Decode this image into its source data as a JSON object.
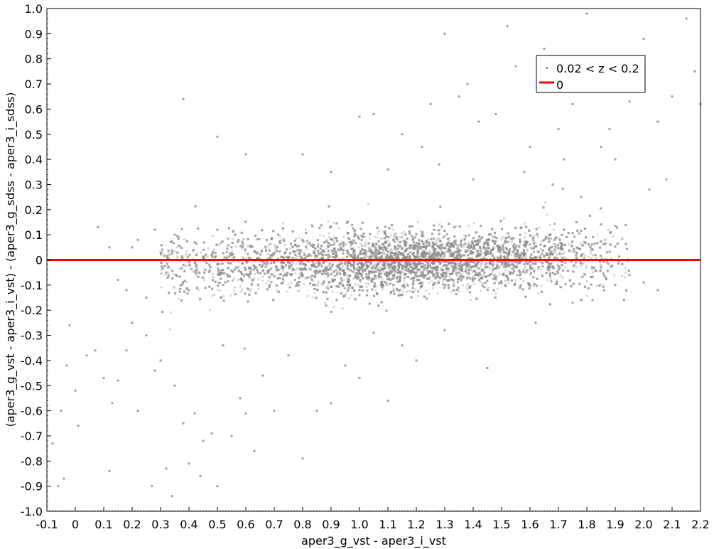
{
  "chart_data": {
    "type": "scatter",
    "xlabel": "aper3_g_vst - aper3_i_vst",
    "ylabel": "(aper3_g_vst - aper3_i_vst) - (aper3_g_sdss - aper3_i_sdss)",
    "xlim": [
      -0.1,
      2.2
    ],
    "ylim": [
      -1.0,
      1.0
    ],
    "x_ticks": [
      "-0.1",
      "0",
      "0.1",
      "0.2",
      "0.3",
      "0.4",
      "0.5",
      "0.6",
      "0.7",
      "0.8",
      "0.9",
      "1.0",
      "1.1",
      "1.2",
      "1.3",
      "1.4",
      "1.5",
      "1.6",
      "1.7",
      "1.8",
      "1.9",
      "2.0",
      "2.1",
      "2.2"
    ],
    "y_ticks": [
      "-1.0",
      "-0.9",
      "-0.8",
      "-0.7",
      "-0.6",
      "-0.5",
      "-0.4",
      "-0.3",
      "-0.2",
      "-0.1",
      "0",
      "0.1",
      "0.2",
      "0.3",
      "0.4",
      "0.5",
      "0.6",
      "0.7",
      "0.8",
      "0.9",
      "1.0"
    ],
    "grid": false,
    "legend": {
      "position": "top-right",
      "entries": [
        {
          "label": "0.02 < z < 0.2",
          "kind": "points",
          "color": "#999999"
        },
        {
          "label": "0",
          "kind": "line",
          "color": "#ff0000"
        }
      ]
    },
    "series": [
      {
        "name": "0.02 < z < 0.2",
        "color": "#8c8c8c",
        "marker": "square",
        "points": [
          [
            -0.08,
            -0.73
          ],
          [
            -0.06,
            -0.9
          ],
          [
            -0.05,
            -0.6
          ],
          [
            -0.04,
            -0.87
          ],
          [
            -0.03,
            -0.42
          ],
          [
            -0.02,
            -0.26
          ],
          [
            0.0,
            -0.52
          ],
          [
            0.01,
            -0.66
          ],
          [
            0.04,
            -0.38
          ],
          [
            0.07,
            -0.36
          ],
          [
            0.1,
            -0.47
          ],
          [
            0.12,
            -0.84
          ],
          [
            0.13,
            -0.57
          ],
          [
            0.15,
            -0.48
          ],
          [
            0.18,
            -0.36
          ],
          [
            0.2,
            -0.25
          ],
          [
            0.22,
            -0.6
          ],
          [
            0.25,
            -0.3
          ],
          [
            0.27,
            -0.9
          ],
          [
            0.28,
            -0.44
          ],
          [
            0.3,
            -0.4
          ],
          [
            0.32,
            -0.83
          ],
          [
            0.34,
            -0.94
          ],
          [
            0.35,
            -0.5
          ],
          [
            0.38,
            -0.65
          ],
          [
            0.4,
            -0.81
          ],
          [
            0.42,
            -0.61
          ],
          [
            0.44,
            -0.86
          ],
          [
            0.45,
            -0.72
          ],
          [
            0.48,
            -0.69
          ],
          [
            0.5,
            -0.9
          ],
          [
            0.52,
            -0.34
          ],
          [
            0.55,
            -0.7
          ],
          [
            0.58,
            -0.55
          ],
          [
            0.6,
            -0.61
          ],
          [
            0.63,
            -0.76
          ],
          [
            0.66,
            -0.46
          ],
          [
            0.7,
            -0.6
          ],
          [
            0.75,
            -0.38
          ],
          [
            0.8,
            -0.79
          ],
          [
            0.85,
            -0.6
          ],
          [
            0.9,
            -0.57
          ],
          [
            0.95,
            -0.42
          ],
          [
            1.0,
            -0.47
          ],
          [
            1.05,
            -0.29
          ],
          [
            1.1,
            -0.56
          ],
          [
            1.15,
            -0.34
          ],
          [
            1.2,
            -0.4
          ],
          [
            1.3,
            -0.28
          ],
          [
            1.45,
            -0.43
          ],
          [
            0.38,
            0.64
          ],
          [
            0.5,
            0.49
          ],
          [
            0.6,
            0.42
          ],
          [
            0.8,
            0.42
          ],
          [
            0.9,
            0.35
          ],
          [
            1.0,
            0.57
          ],
          [
            1.05,
            0.58
          ],
          [
            1.1,
            0.36
          ],
          [
            1.15,
            0.5
          ],
          [
            1.25,
            0.62
          ],
          [
            1.3,
            0.9
          ],
          [
            1.35,
            0.65
          ],
          [
            1.38,
            0.7
          ],
          [
            1.42,
            0.55
          ],
          [
            1.48,
            0.58
          ],
          [
            1.52,
            0.93
          ],
          [
            1.55,
            0.77
          ],
          [
            1.6,
            0.45
          ],
          [
            1.65,
            0.84
          ],
          [
            1.7,
            0.52
          ],
          [
            1.75,
            0.62
          ],
          [
            1.8,
            0.98
          ],
          [
            1.85,
            0.45
          ],
          [
            1.9,
            0.4
          ],
          [
            1.95,
            0.63
          ],
          [
            2.0,
            0.88
          ],
          [
            2.05,
            0.55
          ],
          [
            2.1,
            0.65
          ],
          [
            2.15,
            0.96
          ],
          [
            2.18,
            0.75
          ],
          [
            2.2,
            0.62
          ],
          [
            1.22,
            0.45
          ],
          [
            1.28,
            0.38
          ],
          [
            1.4,
            0.32
          ],
          [
            1.58,
            0.35
          ],
          [
            1.68,
            0.3
          ],
          [
            1.72,
            0.4
          ],
          [
            1.78,
            0.25
          ],
          [
            1.88,
            0.52
          ],
          [
            1.92,
            0.73
          ],
          [
            2.02,
            0.28
          ],
          [
            2.08,
            0.32
          ],
          [
            1.95,
            -0.06
          ],
          [
            2.0,
            -0.09
          ],
          [
            2.05,
            -0.12
          ],
          [
            1.9,
            -0.1
          ],
          [
            1.85,
            -0.03
          ],
          [
            1.82,
            -0.16
          ],
          [
            1.75,
            -0.17
          ],
          [
            1.62,
            -0.25
          ],
          [
            0.05,
            0.0
          ],
          [
            0.08,
            0.13
          ],
          [
            0.12,
            0.05
          ],
          [
            0.15,
            -0.08
          ],
          [
            0.18,
            -0.12
          ],
          [
            0.2,
            0.05
          ],
          [
            0.22,
            0.08
          ],
          [
            0.25,
            -0.15
          ],
          [
            0.28,
            0.12
          ],
          [
            0.3,
            0.03
          ],
          [
            0.32,
            -0.05
          ],
          [
            0.35,
            0.1
          ],
          [
            0.38,
            -0.02
          ],
          [
            0.4,
            -0.12
          ],
          [
            0.42,
            0.07
          ],
          [
            0.45,
            -0.07
          ],
          [
            0.48,
            0.02
          ],
          [
            0.5,
            0.12
          ],
          [
            0.52,
            -0.1
          ],
          [
            0.55,
            0.05
          ]
        ]
      }
    ],
    "reference_line": {
      "label": "0",
      "y": 0,
      "color": "#ff0000"
    }
  }
}
